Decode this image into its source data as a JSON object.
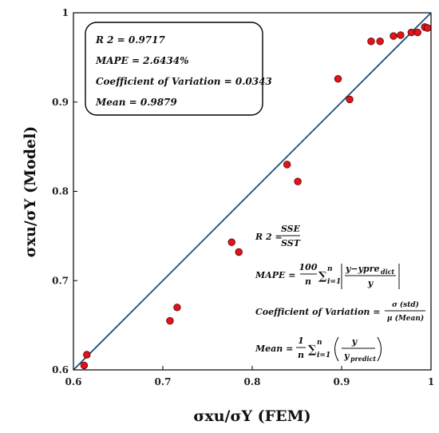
{
  "chart_data": {
    "type": "scatter",
    "xlabel": "σxu/σY (FEM)",
    "ylabel": "σxu/σY (Model)",
    "xlim": [
      0.6,
      1.0
    ],
    "ylim": [
      0.6,
      1.0
    ],
    "x_ticks": [
      "0.6",
      "0.7",
      "0.8",
      "0.9",
      "1"
    ],
    "y_ticks": [
      "0.6",
      "0.7",
      "0.8",
      "0.9",
      "1"
    ],
    "grid": false,
    "reference_line": {
      "from": [
        0.6,
        0.6
      ],
      "to": [
        1.0,
        1.0
      ],
      "color": "#1f4e79"
    },
    "marker_color": "#e0141b",
    "marker_edge": "#5a0000",
    "points": [
      {
        "x": 0.612,
        "y": 0.605
      },
      {
        "x": 0.615,
        "y": 0.617
      },
      {
        "x": 0.708,
        "y": 0.655
      },
      {
        "x": 0.716,
        "y": 0.67
      },
      {
        "x": 0.777,
        "y": 0.743
      },
      {
        "x": 0.785,
        "y": 0.732
      },
      {
        "x": 0.839,
        "y": 0.83
      },
      {
        "x": 0.851,
        "y": 0.811
      },
      {
        "x": 0.896,
        "y": 0.926
      },
      {
        "x": 0.909,
        "y": 0.903
      },
      {
        "x": 0.933,
        "y": 0.968
      },
      {
        "x": 0.943,
        "y": 0.968
      },
      {
        "x": 0.958,
        "y": 0.974
      },
      {
        "x": 0.966,
        "y": 0.975
      },
      {
        "x": 0.978,
        "y": 0.978
      },
      {
        "x": 0.985,
        "y": 0.978
      },
      {
        "x": 0.993,
        "y": 0.984
      },
      {
        "x": 0.996,
        "y": 0.983
      }
    ],
    "stats_box": [
      "R 2 = 0.9717",
      "MAPE = 2.6434%",
      "Coefficient of Variation = 0.0343",
      "Mean = 0.9879"
    ],
    "formulas": {
      "r2": {
        "lhs": "R 2 =",
        "num": "SSE",
        "den": "SST"
      },
      "mape": {
        "lhs": "MAPE =",
        "num": "100",
        "den": "n",
        "sum": "∑",
        "sub": "i=1",
        "sup": "n",
        "abs_num": "y−ypre",
        "abs_num_sub": "dict",
        "abs_den": "y"
      },
      "cov": {
        "lhs": "Coefficient of Variation =",
        "num": "σ (std)",
        "den": "μ (Mean)"
      },
      "mean": {
        "lhs": "Mean =",
        "num": "1",
        "den": "n",
        "sum": "∑",
        "sub": "i=1",
        "sup": "n",
        "paren_num": "y",
        "paren_den": "y",
        "paren_den_sub": "predict"
      }
    }
  }
}
